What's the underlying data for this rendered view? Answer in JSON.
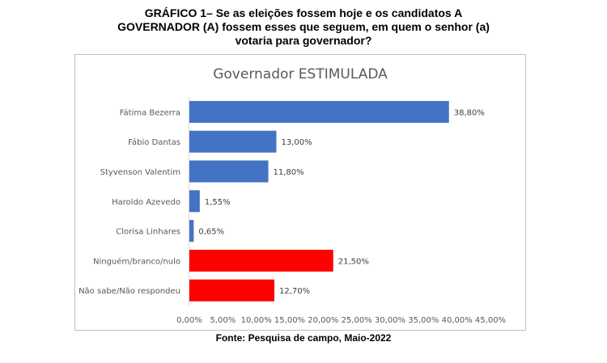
{
  "page": {
    "heading_lines": [
      "GRÁFICO 1– Se as eleições fossem hoje e os candidatos A",
      "GOVERNADOR (A) fossem esses que seguem, em quem o senhor (a)",
      "votaria para governador?"
    ],
    "footer": "Fonte: Pesquisa de campo, Maio-2022"
  },
  "chart_data": {
    "type": "bar",
    "orientation": "horizontal",
    "title": "Governador ESTIMULADA",
    "categories": [
      "Fátima Bezerra",
      "Fábio Dantas",
      "Styvenson Valentim",
      "Haroldo Azevedo",
      "Clorisa Linhares",
      "Ninguém/branco/nulo",
      "Não sabe/Não respondeu"
    ],
    "values": [
      38.8,
      13.0,
      11.8,
      1.55,
      0.65,
      21.5,
      12.7
    ],
    "data_labels": [
      "38,80%",
      "13,00%",
      "11,80%",
      "1,55%",
      "0,65%",
      "21,50%",
      "12,70%"
    ],
    "bar_colors": [
      "#4472c4",
      "#4472c4",
      "#4472c4",
      "#4472c4",
      "#4472c4",
      "#ff0000",
      "#ff0000"
    ],
    "xlim": [
      0,
      45
    ],
    "x_ticks": [
      "0,00%",
      "5,00%",
      "10,00%",
      "15,00%",
      "20,00%",
      "25,00%",
      "30,00%",
      "35,00%",
      "40,00%",
      "45,00%"
    ],
    "grid": false,
    "legend": "none"
  }
}
